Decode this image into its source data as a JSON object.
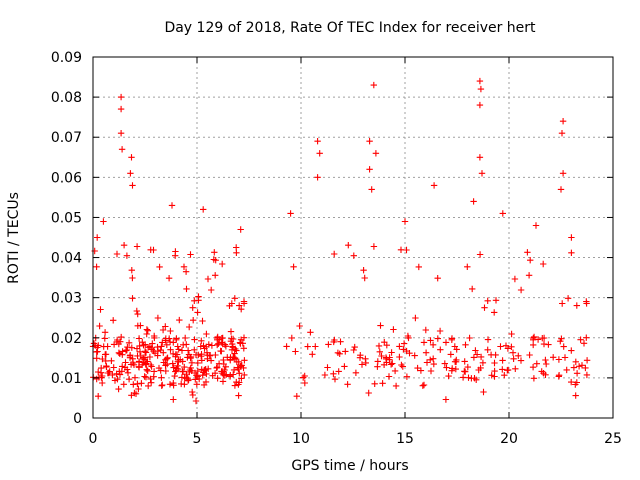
{
  "chart_data": {
    "type": "scatter",
    "title": "Day 129 of 2018, Rate Of TEC Index for receiver hert",
    "xlabel": "GPS time / hours",
    "ylabel": "ROTI / TECUs",
    "xlim": [
      0,
      25
    ],
    "ylim": [
      0,
      0.09
    ],
    "xticks": [
      0,
      5,
      10,
      15,
      20,
      25
    ],
    "xtick_labels": [
      "0",
      "5",
      "10",
      "15",
      "20",
      "25"
    ],
    "yticks": [
      0,
      0.01,
      0.02,
      0.03,
      0.04,
      0.05,
      0.06,
      0.07,
      0.08,
      0.09
    ],
    "ytick_labels": [
      "0",
      "0.01",
      "0.02",
      "0.03",
      "0.04",
      "0.05",
      "0.06",
      "0.07",
      "0.08",
      "0.09"
    ],
    "grid": true,
    "marker": "+",
    "marker_color": "#ff0000",
    "data_extent": {
      "segments": [
        [
          0.0,
          7.3
        ],
        [
          9.3,
          23.8
        ]
      ],
      "typical_range": [
        0.004,
        0.03
      ]
    },
    "notable_points": [
      {
        "x": 1.35,
        "y": 0.08
      },
      {
        "x": 1.35,
        "y": 0.077
      },
      {
        "x": 1.35,
        "y": 0.071
      },
      {
        "x": 1.4,
        "y": 0.067
      },
      {
        "x": 1.85,
        "y": 0.065
      },
      {
        "x": 1.8,
        "y": 0.061
      },
      {
        "x": 1.9,
        "y": 0.058
      },
      {
        "x": 10.8,
        "y": 0.069
      },
      {
        "x": 10.9,
        "y": 0.066
      },
      {
        "x": 10.8,
        "y": 0.06
      },
      {
        "x": 13.5,
        "y": 0.083
      },
      {
        "x": 13.3,
        "y": 0.069
      },
      {
        "x": 13.6,
        "y": 0.066
      },
      {
        "x": 13.3,
        "y": 0.062
      },
      {
        "x": 13.4,
        "y": 0.057
      },
      {
        "x": 18.6,
        "y": 0.084
      },
      {
        "x": 18.65,
        "y": 0.082
      },
      {
        "x": 18.6,
        "y": 0.078
      },
      {
        "x": 18.6,
        "y": 0.065
      },
      {
        "x": 18.7,
        "y": 0.061
      },
      {
        "x": 22.6,
        "y": 0.074
      },
      {
        "x": 22.55,
        "y": 0.071
      },
      {
        "x": 22.6,
        "y": 0.061
      },
      {
        "x": 22.5,
        "y": 0.057
      },
      {
        "x": 16.4,
        "y": 0.058
      },
      {
        "x": 18.3,
        "y": 0.054
      },
      {
        "x": 19.7,
        "y": 0.051
      },
      {
        "x": 0.2,
        "y": 0.045
      },
      {
        "x": 0.5,
        "y": 0.049
      },
      {
        "x": 3.8,
        "y": 0.053
      },
      {
        "x": 5.3,
        "y": 0.052
      },
      {
        "x": 7.1,
        "y": 0.047
      },
      {
        "x": 9.5,
        "y": 0.051
      },
      {
        "x": 15.0,
        "y": 0.049
      },
      {
        "x": 21.3,
        "y": 0.048
      },
      {
        "x": 23.0,
        "y": 0.045
      }
    ]
  }
}
